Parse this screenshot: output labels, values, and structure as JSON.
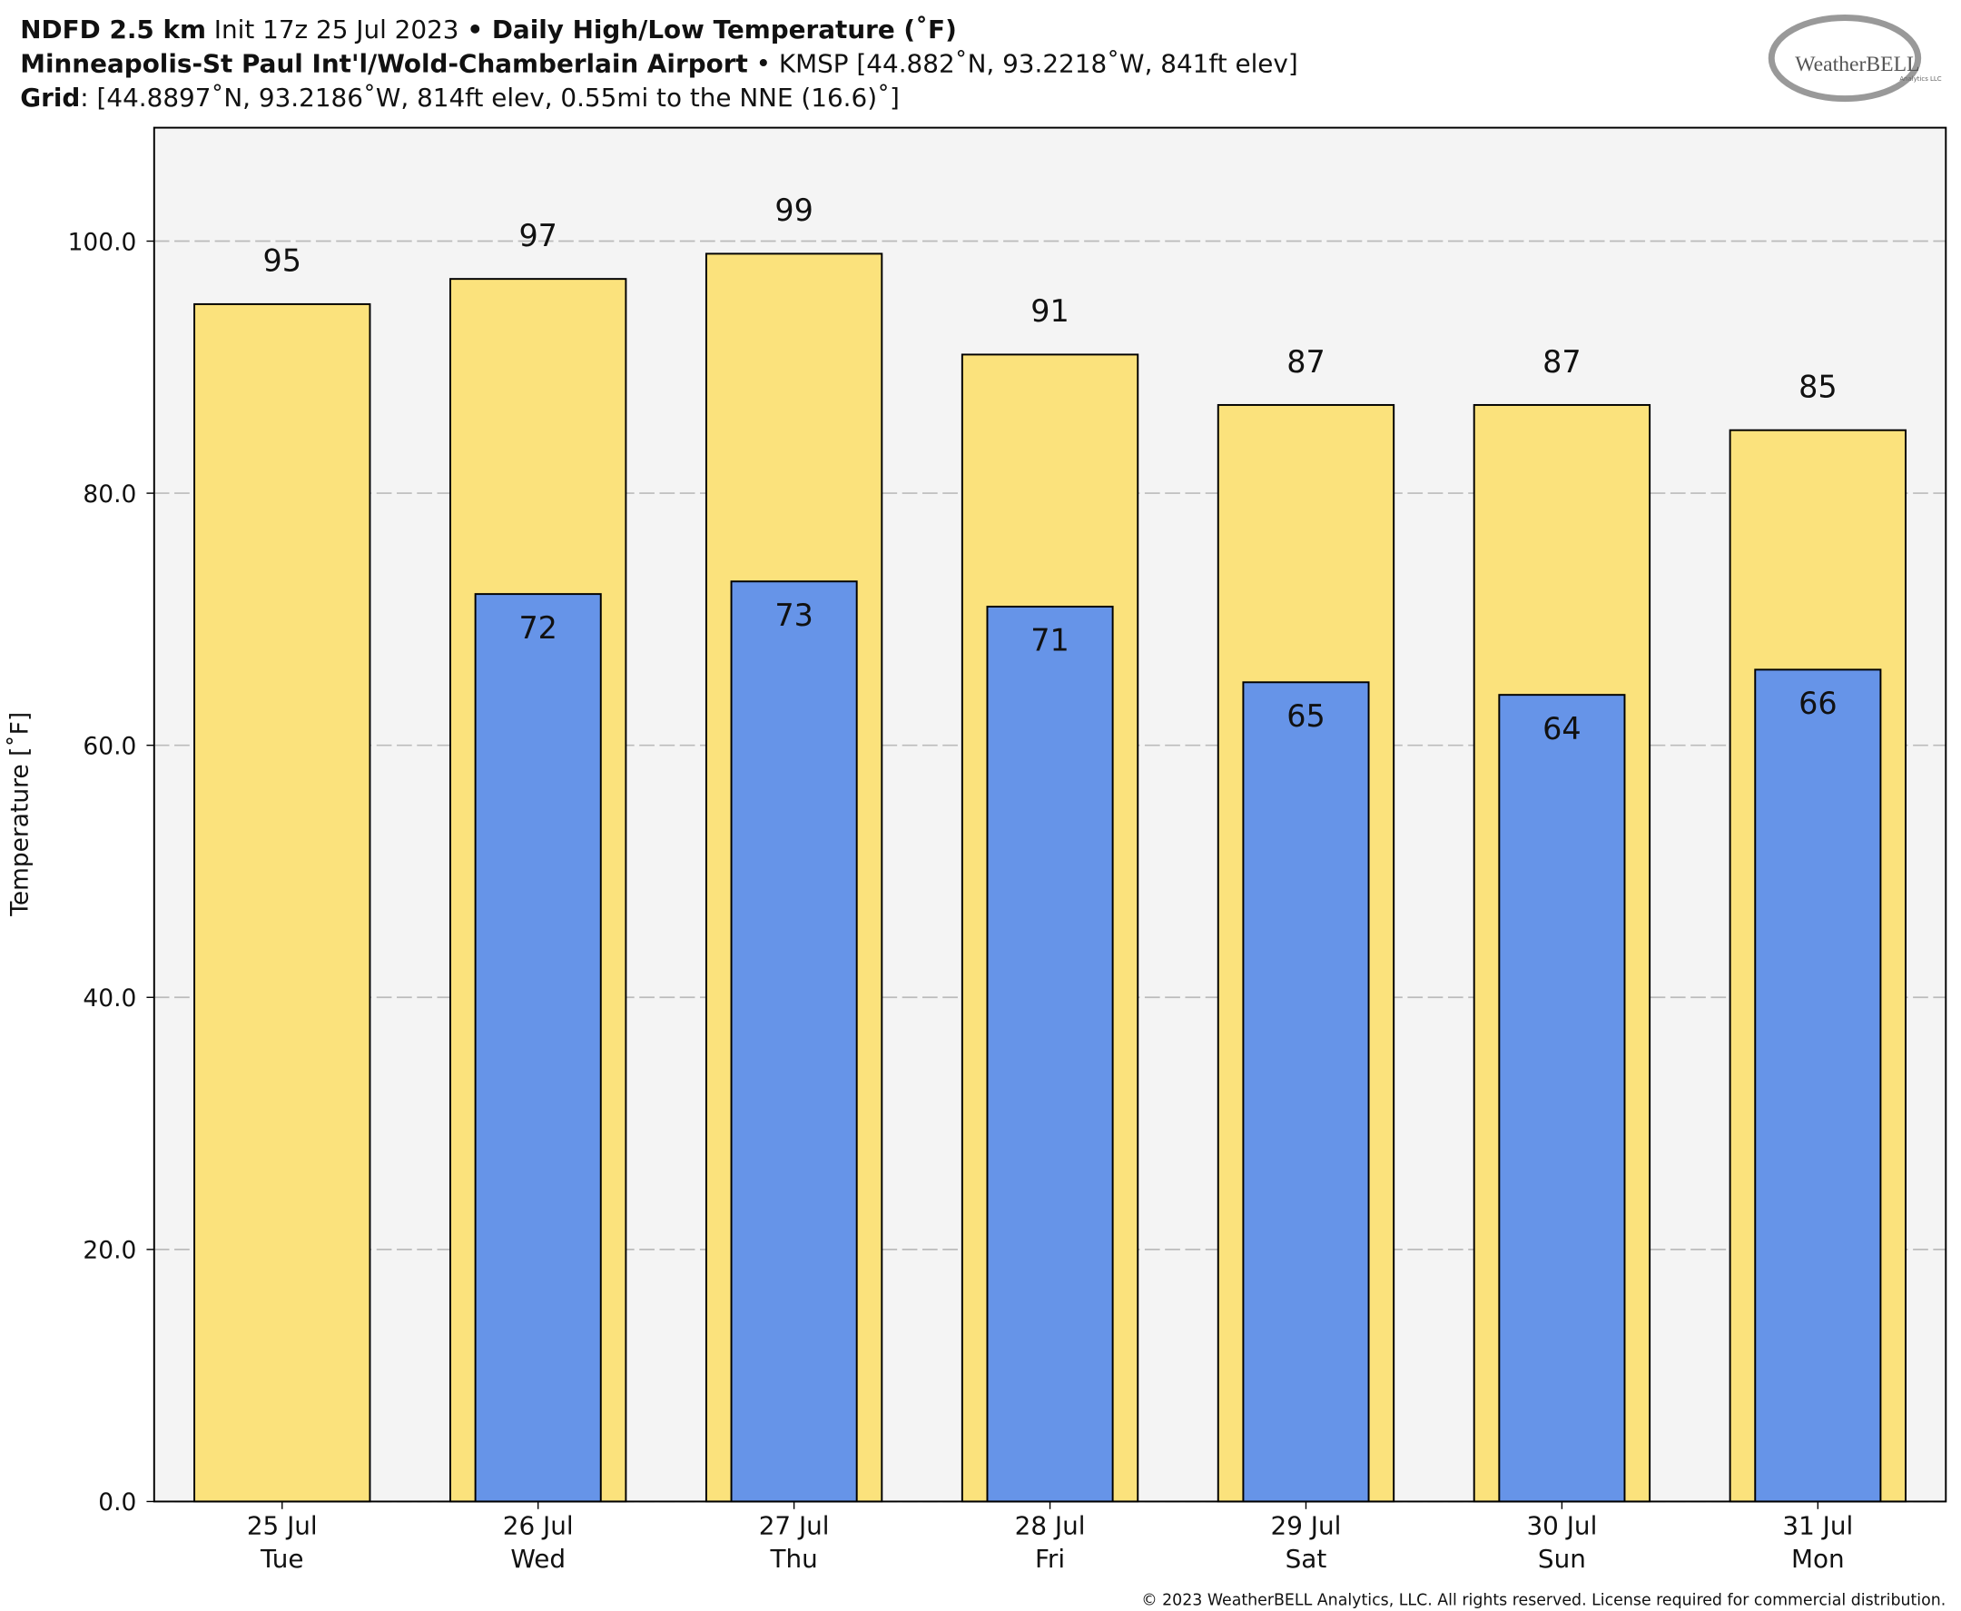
{
  "chart_data": {
    "type": "bar",
    "title": {
      "lines": [
        [
          {
            "text": "NDFD 2.5 km",
            "bold": true
          },
          {
            "text": " Init 17z 25 Jul 2023 ",
            "bold": false
          },
          {
            "text": "• Daily High/Low Temperature (˚F)",
            "bold": true
          }
        ],
        [
          {
            "text": "Minneapolis-St Paul Int'l/Wold-Chamberlain Airport",
            "bold": true
          },
          {
            "text": " • KMSP [44.882˚N, 93.2218˚W, 841ft elev]",
            "bold": false
          }
        ],
        [
          {
            "text": "Grid",
            "bold": true
          },
          {
            "text": ": [44.8897˚N, 93.2186˚W, 814ft elev, 0.55mi to the NNE (16.6)˚]",
            "bold": false
          }
        ]
      ]
    },
    "logo": {
      "name": "WeatherBELL",
      "sub": "Analytics LLC"
    },
    "ylabel": "Temperature [˚F]",
    "footer": "© 2023 WeatherBELL Analytics, LLC. All rights reserved. License required for commercial distribution.",
    "categories": [
      [
        "25 Jul",
        "Tue"
      ],
      [
        "26 Jul",
        "Wed"
      ],
      [
        "27 Jul",
        "Thu"
      ],
      [
        "28 Jul",
        "Fri"
      ],
      [
        "29 Jul",
        "Sat"
      ],
      [
        "30 Jul",
        "Sun"
      ],
      [
        "31 Jul",
        "Mon"
      ]
    ],
    "series": [
      {
        "color": "#fbe27c",
        "values": [
          95,
          97,
          99,
          91,
          87,
          87,
          85
        ]
      },
      {
        "color": "#6694e8",
        "values": [
          null,
          72,
          73,
          71,
          65,
          64,
          66
        ]
      }
    ],
    "ylim": [
      0,
      109
    ],
    "yticks": [
      {
        "value": 0,
        "label": "0.0"
      },
      {
        "value": 20,
        "label": "20.0"
      },
      {
        "value": 40,
        "label": "40.0"
      },
      {
        "value": 60,
        "label": "60.0"
      },
      {
        "value": 80,
        "label": "80.0"
      },
      {
        "value": 100,
        "label": "100.0"
      }
    ],
    "grid": true
  }
}
